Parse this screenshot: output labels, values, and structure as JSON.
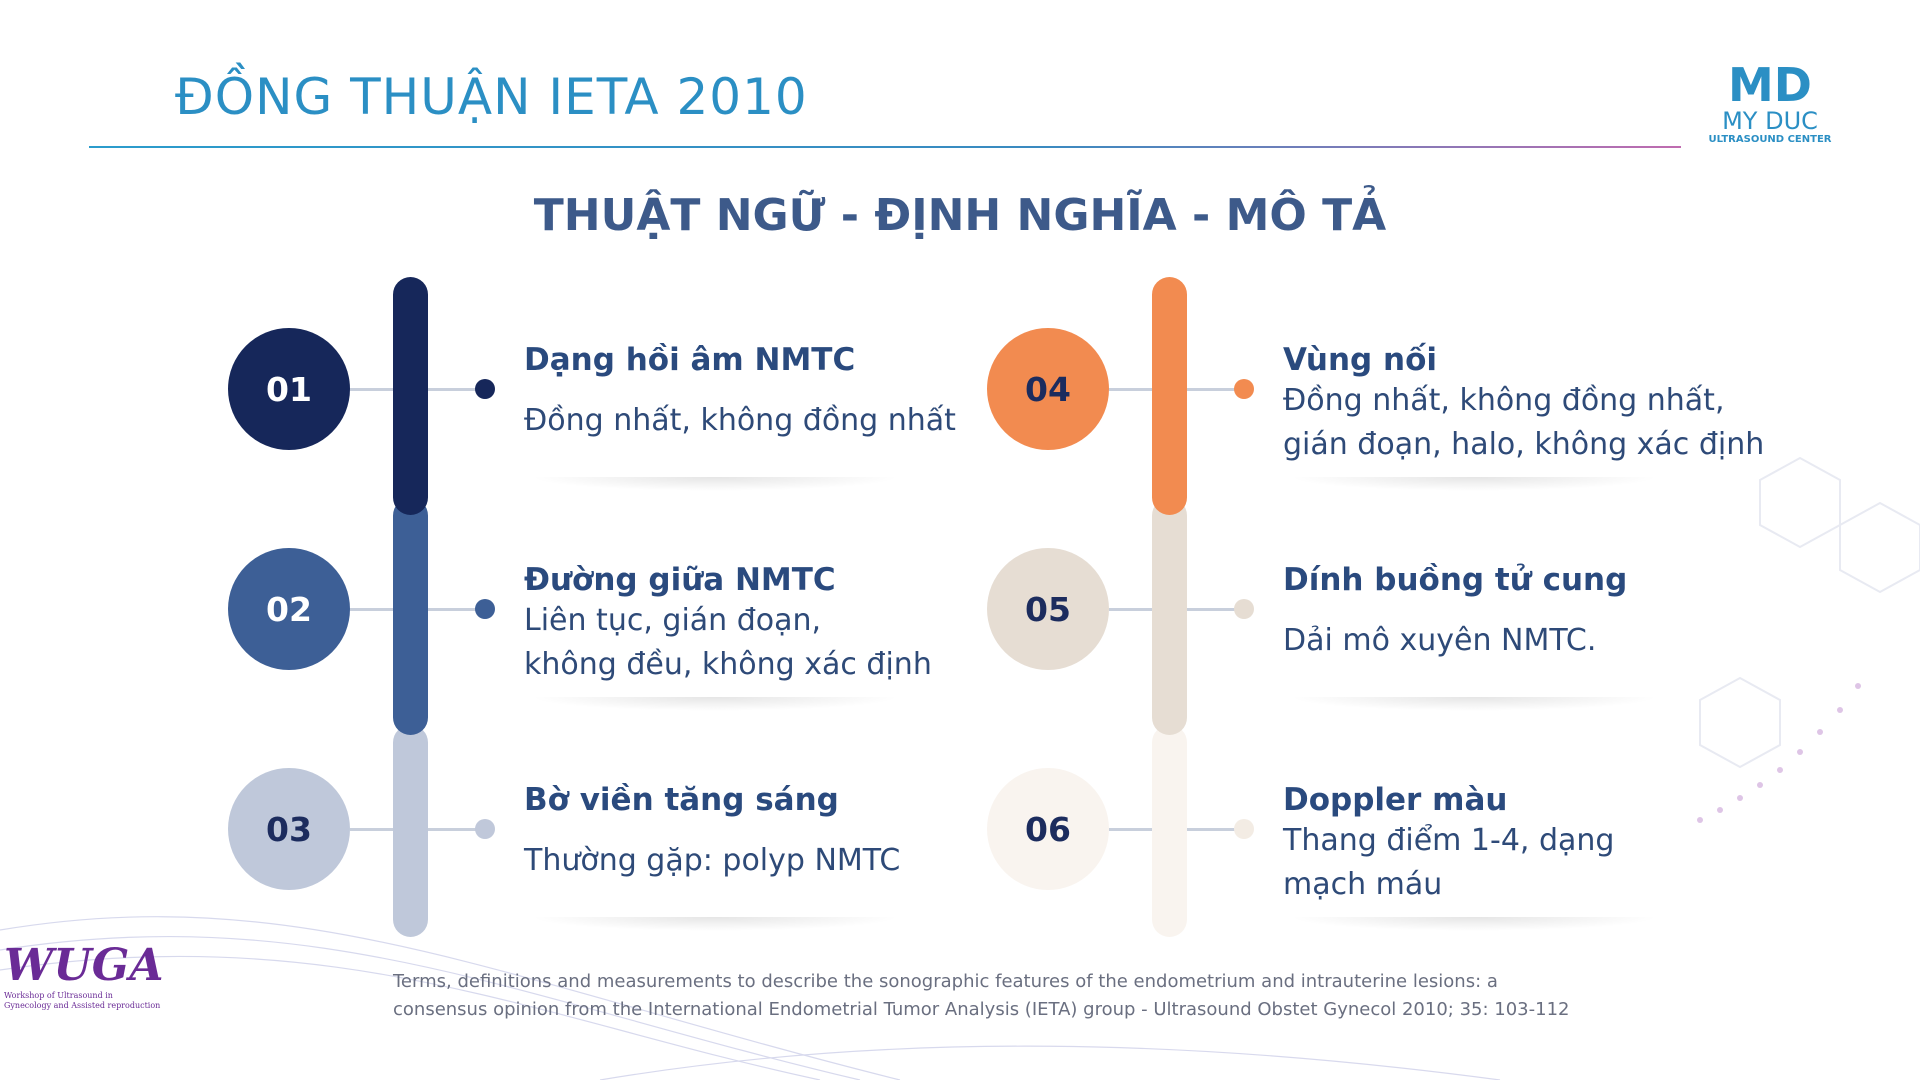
{
  "header": {
    "title": "ĐỒNG THUẬN IETA 2010",
    "logo": {
      "mark": "MD",
      "name": "MY DUC",
      "tagline": "ULTRASOUND CENTER"
    }
  },
  "subtitle": "THUẬT NGỮ - ĐỊNH NGHĨA - MÔ TẢ",
  "items": [
    {
      "number": "01",
      "title": "Dạng hồi âm NMTC",
      "description": [
        "Đồng nhất, không đồng nhất"
      ]
    },
    {
      "number": "02",
      "title": "Đường giữa NMTC",
      "description": [
        "Liên tục, gián đoạn,",
        "không đều, không xác định"
      ]
    },
    {
      "number": "03",
      "title": "Bờ viền tăng sáng",
      "description": [
        "Thường gặp: polyp NMTC"
      ]
    },
    {
      "number": "04",
      "title": "Vùng nối",
      "description": [
        "Đồng nhất, không đồng nhất,",
        "gián đoạn, halo, không xác định"
      ]
    },
    {
      "number": "05",
      "title": "Dính buồng tử cung",
      "description": [
        "Dải mô xuyên NMTC."
      ]
    },
    {
      "number": "06",
      "title": "Doppler màu",
      "description": [
        "Thang điểm 1-4, dạng",
        "mạch máu"
      ]
    }
  ],
  "reference": "Terms, definitions and measurements to describe the sonographic features of the endometrium and intrauterine lesions: a consensus opinion from the International Endometrial Tumor Analysis (IETA) group - Ultrasound Obstet Gynecol 2010; 35: 103-112",
  "footer_logo": {
    "name": "WUGA",
    "caption": [
      "Workshop of Ultrasound in",
      "Gynecology and Assisted reproduction"
    ]
  }
}
